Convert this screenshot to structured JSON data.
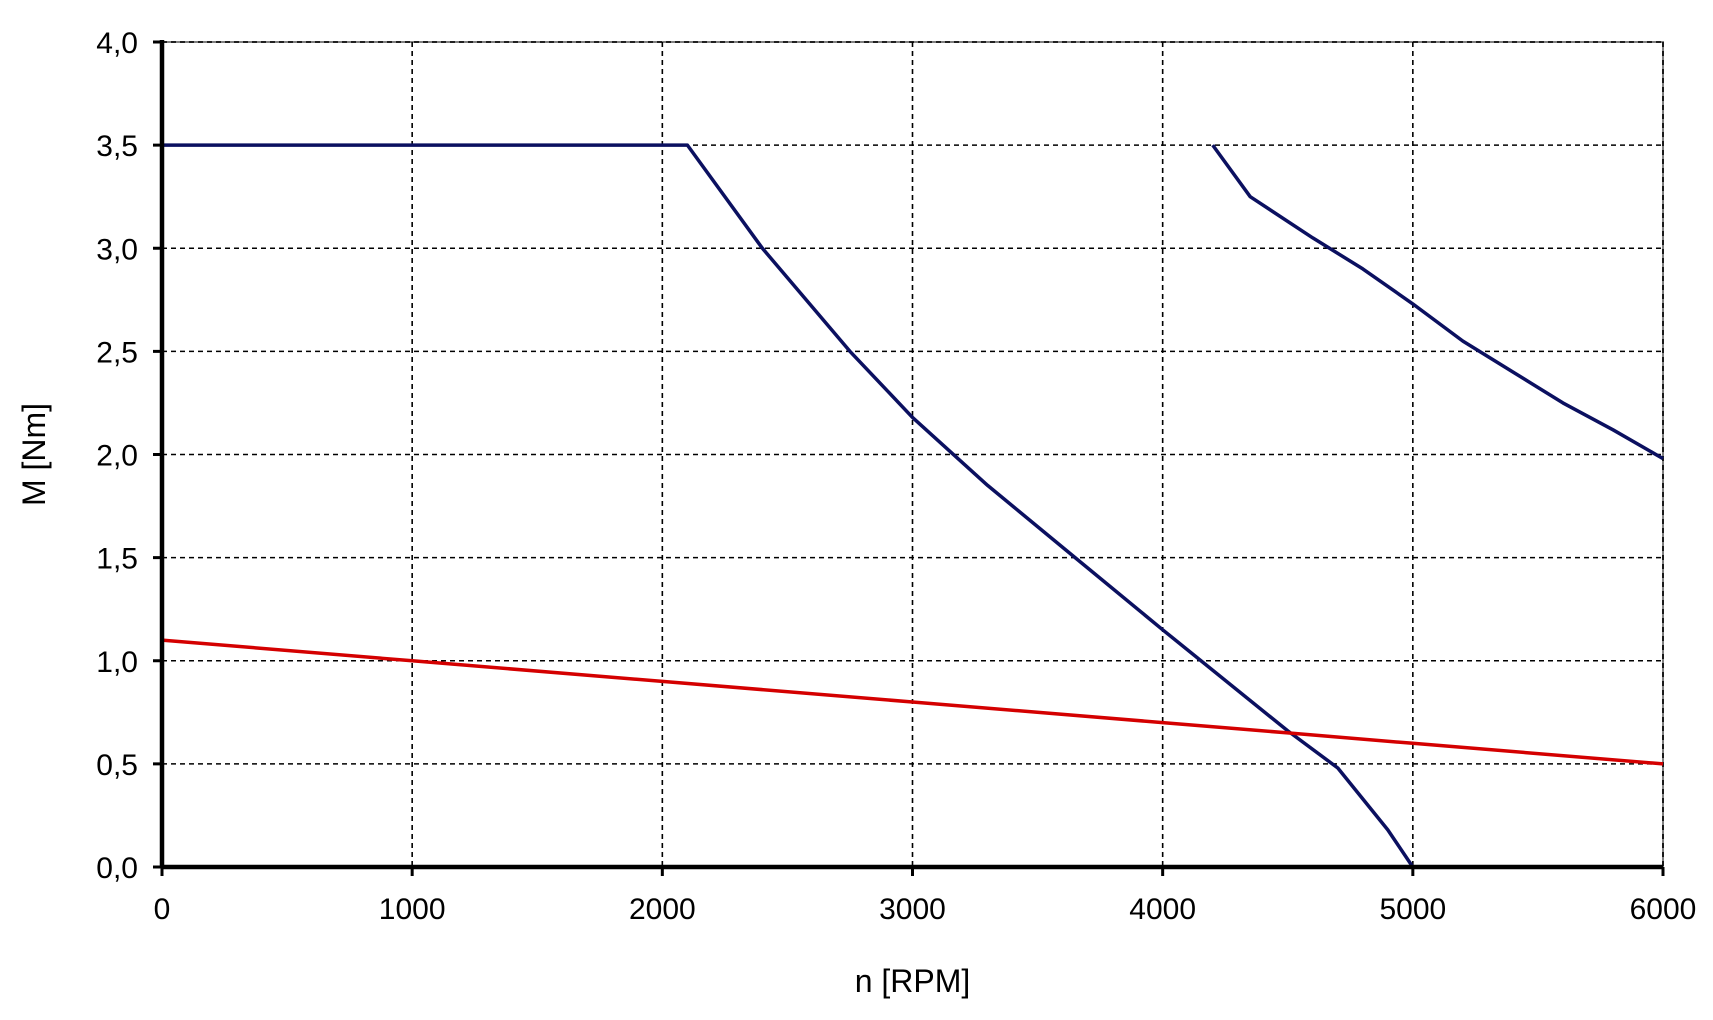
{
  "chart_data": {
    "type": "line",
    "title": "",
    "xlabel": "n [RPM]",
    "ylabel": "M [Nm]",
    "xlim": [
      0,
      6000
    ],
    "ylim": [
      0,
      4
    ],
    "x_ticks": [
      0,
      1000,
      2000,
      3000,
      4000,
      5000,
      6000
    ],
    "x_tick_labels": [
      "0",
      "1000",
      "2000",
      "3000",
      "4000",
      "5000",
      "6000"
    ],
    "y_ticks": [
      0,
      0.5,
      1,
      1.5,
      2,
      2.5,
      3,
      3.5,
      4
    ],
    "y_tick_labels": [
      "0,0",
      "0,5",
      "1,0",
      "1,5",
      "2,0",
      "2,5",
      "3,0",
      "3,5",
      "4,0"
    ],
    "grid": true,
    "legend": "none",
    "series": [
      {
        "color": "#0b1060",
        "x": [
          0,
          2100,
          2400,
          2750,
          3000,
          3300,
          3650,
          4000,
          4500,
          4700,
          4900,
          5000
        ],
        "y": [
          3.5,
          3.5,
          3.0,
          2.5,
          2.18,
          1.85,
          1.5,
          1.15,
          0.66,
          0.48,
          0.18,
          0
        ]
      },
      {
        "color": "#0b1060",
        "x": [
          4200,
          4350,
          4600,
          4800,
          5000,
          5200,
          5400,
          5600,
          5800,
          6000
        ],
        "y": [
          3.5,
          3.25,
          3.05,
          2.9,
          2.73,
          2.55,
          2.4,
          2.25,
          2.12,
          1.98
        ]
      },
      {
        "color": "#d40000",
        "x": [
          0,
          1000,
          2000,
          3000,
          4000,
          4500,
          5000,
          6000
        ],
        "y": [
          1.1,
          1.0,
          0.9,
          0.8,
          0.7,
          0.65,
          0.6,
          0.5
        ]
      }
    ]
  }
}
